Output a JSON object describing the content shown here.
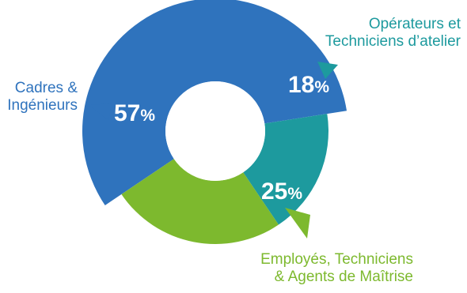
{
  "chart_data": {
    "type": "pie",
    "variant": "donut",
    "categories": [
      {
        "label_lines": [
          "Cadres &",
          "Ingénieurs"
        ],
        "value": 57,
        "display": "57",
        "color": "#2F73BD"
      },
      {
        "label_lines": [
          "Opérateurs et",
          "Techniciens d’atelier"
        ],
        "value": 18,
        "display": "18",
        "color": "#1D9A9E"
      },
      {
        "label_lines": [
          "Employés, Techniciens",
          "& Agents de Maîtrise"
        ],
        "value": 25,
        "display": "25",
        "color": "#7DB92E"
      }
    ],
    "unit": "%",
    "label_colors": [
      "#2F73BD",
      "#1D9A9E",
      "#7DB92E"
    ],
    "legend": "none"
  }
}
